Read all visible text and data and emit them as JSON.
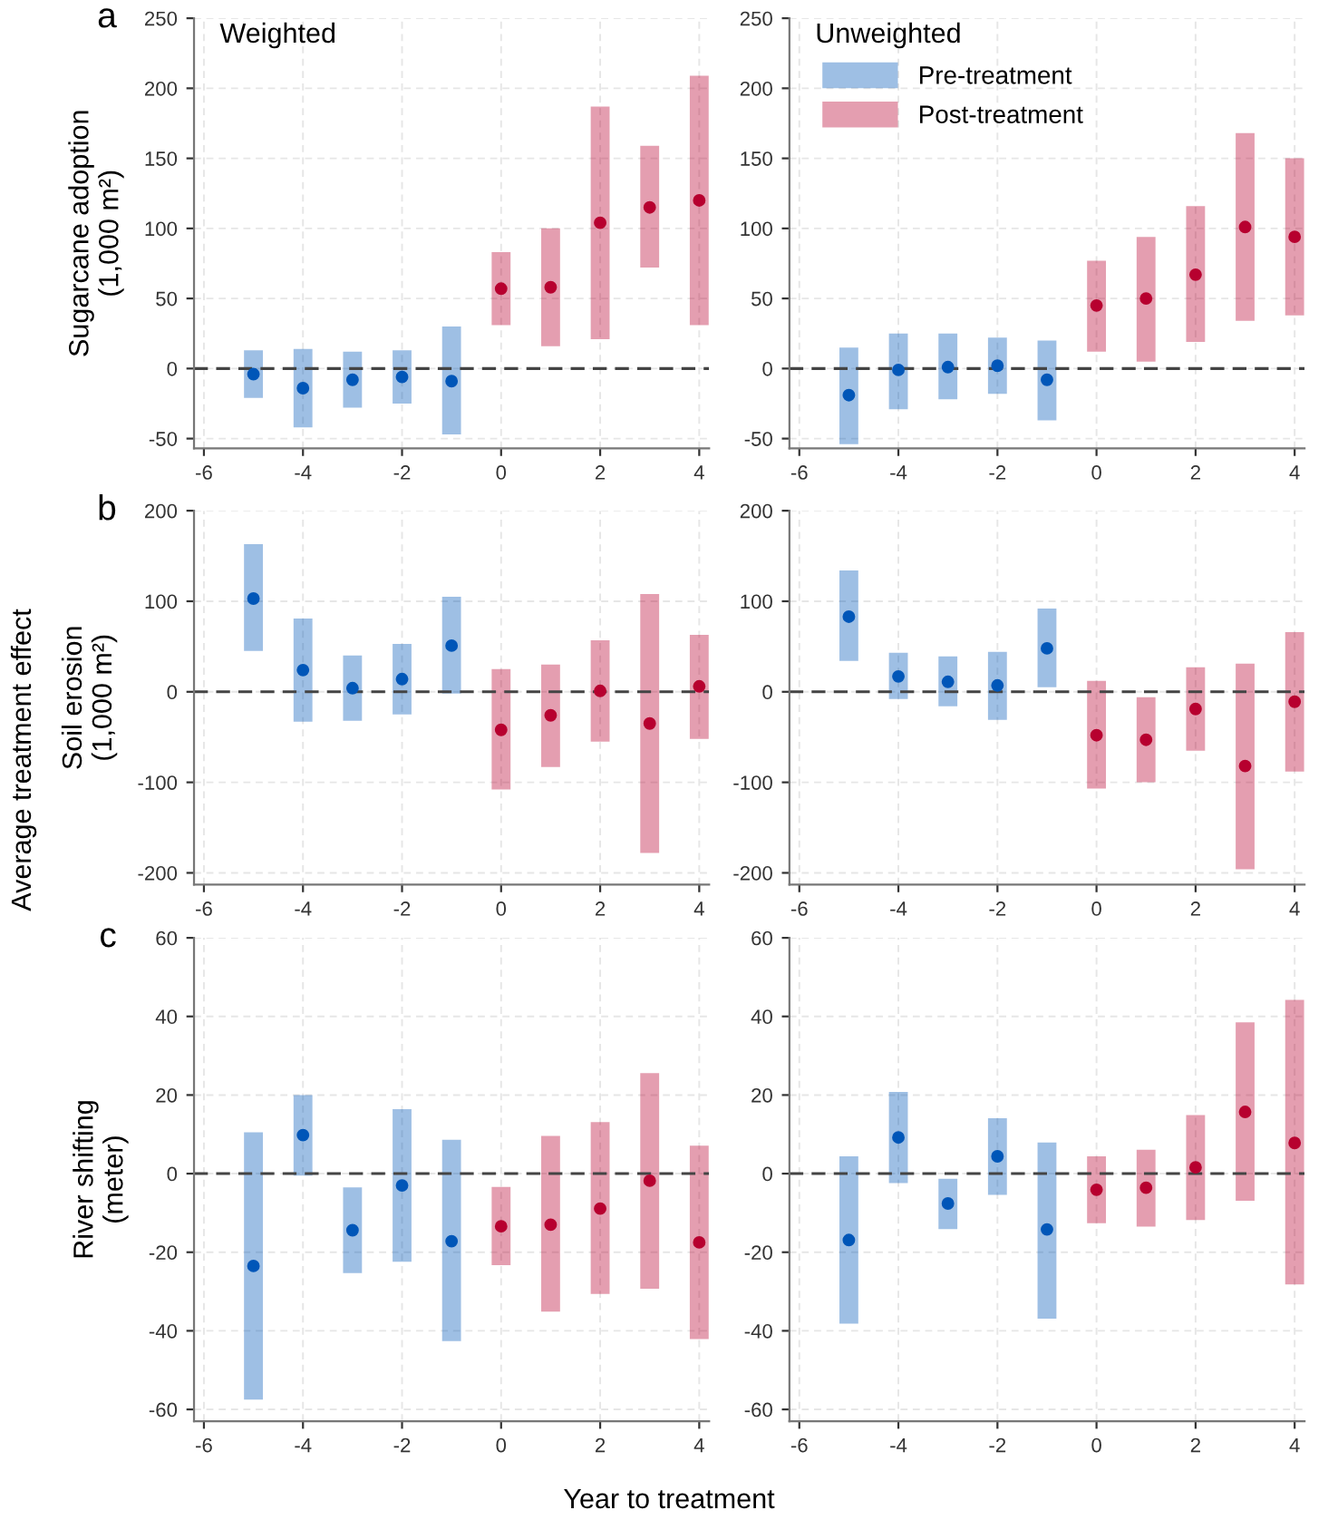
{
  "chart_data": [
    {
      "type": "scatter",
      "title": "Weighted",
      "ylabel": "Sugarcane adoption\n(1,000 m²)",
      "annotations": [
        "a",
        "Average treatment effect"
      ],
      "xlim": [
        -6.2,
        4.2
      ],
      "xticks": [
        -6,
        -4,
        -2,
        0,
        2,
        4
      ],
      "ylim": [
        -57,
        250
      ],
      "yticks": [
        -50,
        0,
        50,
        100,
        150,
        200,
        250
      ],
      "grid": true,
      "marker": "circle",
      "ref_lines": [
        {
          "axis": "y",
          "value": 0,
          "line_style": "dashed"
        }
      ],
      "series": [
        {
          "color": "#0056b8",
          "x": [
            -5,
            -4,
            -3,
            -2,
            -1
          ],
          "values": [
            -4,
            -14,
            -8,
            -6,
            -9
          ],
          "errors": [
            [
              -21,
              13
            ],
            [
              -42,
              14
            ],
            [
              -28,
              12
            ],
            [
              -25,
              13
            ],
            [
              -47,
              30
            ]
          ]
        },
        {
          "color": "#b7002f",
          "x": [
            0,
            1,
            2,
            3,
            4
          ],
          "values": [
            57,
            58,
            104,
            115,
            120
          ],
          "errors": [
            [
              31,
              83
            ],
            [
              16,
              100
            ],
            [
              21,
              187
            ],
            [
              72,
              159
            ],
            [
              31,
              209
            ]
          ]
        }
      ]
    },
    {
      "type": "scatter",
      "title": "Unweighted",
      "xlim": [
        -6.2,
        4.2
      ],
      "xticks": [
        -6,
        -4,
        -2,
        0,
        2,
        4
      ],
      "ylim": [
        -57,
        250
      ],
      "yticks": [
        -50,
        0,
        50,
        100,
        150,
        200,
        250
      ],
      "grid": true,
      "marker": "circle",
      "legend": "top left",
      "ref_lines": [
        {
          "axis": "y",
          "value": 0,
          "line_style": "dashed"
        }
      ],
      "series": [
        {
          "name": "Pre-treatment",
          "color": "#0056b8",
          "x": [
            -5,
            -4,
            -3,
            -2,
            -1
          ],
          "values": [
            -19,
            -1,
            1,
            2,
            -8
          ],
          "errors": [
            [
              -54,
              15
            ],
            [
              -29,
              25
            ],
            [
              -22,
              25
            ],
            [
              -18,
              22
            ],
            [
              -37,
              20
            ]
          ]
        },
        {
          "name": "Post-treatment",
          "color": "#b7002f",
          "x": [
            0,
            1,
            2,
            3,
            4
          ],
          "values": [
            45,
            50,
            67,
            101,
            94
          ],
          "errors": [
            [
              12,
              77
            ],
            [
              5,
              94
            ],
            [
              19,
              116
            ],
            [
              34,
              168
            ],
            [
              38,
              150
            ]
          ]
        }
      ]
    },
    {
      "type": "scatter",
      "ylabel": "Soil erosion\n(1,000 m²)",
      "annotations": [
        "b"
      ],
      "xlim": [
        -6.2,
        4.2
      ],
      "xticks": [
        -6,
        -4,
        -2,
        0,
        2,
        4
      ],
      "ylim": [
        -213,
        200
      ],
      "yticks": [
        -200,
        -100,
        0,
        100,
        200
      ],
      "grid": true,
      "marker": "circle",
      "ref_lines": [
        {
          "axis": "y",
          "value": 0,
          "line_style": "dashed"
        }
      ],
      "series": [
        {
          "color": "#0056b8",
          "x": [
            -5,
            -4,
            -3,
            -2,
            -1
          ],
          "values": [
            103,
            24,
            4,
            14,
            51
          ],
          "errors": [
            [
              45,
              163
            ],
            [
              -33,
              81
            ],
            [
              -32,
              40
            ],
            [
              -25,
              53
            ],
            [
              -2,
              105
            ]
          ]
        },
        {
          "color": "#b7002f",
          "x": [
            0,
            1,
            2,
            3,
            4
          ],
          "values": [
            -42,
            -26,
            1,
            -35,
            6
          ],
          "errors": [
            [
              -108,
              25
            ],
            [
              -83,
              30
            ],
            [
              -55,
              57
            ],
            [
              -178,
              108
            ],
            [
              -52,
              63
            ]
          ]
        }
      ]
    },
    {
      "type": "scatter",
      "xlim": [
        -6.2,
        4.2
      ],
      "xticks": [
        -6,
        -4,
        -2,
        0,
        2,
        4
      ],
      "ylim": [
        -213,
        200
      ],
      "yticks": [
        -200,
        -100,
        0,
        100,
        200
      ],
      "grid": true,
      "marker": "circle",
      "ref_lines": [
        {
          "axis": "y",
          "value": 0,
          "line_style": "dashed"
        }
      ],
      "series": [
        {
          "color": "#0056b8",
          "x": [
            -5,
            -4,
            -3,
            -2,
            -1
          ],
          "values": [
            83,
            17,
            11,
            7,
            48
          ],
          "errors": [
            [
              34,
              134
            ],
            [
              -8,
              43
            ],
            [
              -16,
              39
            ],
            [
              -31,
              44
            ],
            [
              5,
              92
            ]
          ]
        },
        {
          "color": "#b7002f",
          "x": [
            0,
            1,
            2,
            3,
            4
          ],
          "values": [
            -48,
            -53,
            -19,
            -82,
            -11
          ],
          "errors": [
            [
              -107,
              12
            ],
            [
              -100,
              -6
            ],
            [
              -65,
              27
            ],
            [
              -196,
              31
            ],
            [
              -88,
              66
            ]
          ]
        }
      ]
    },
    {
      "type": "scatter",
      "ylabel": "River shifting\n(meter)",
      "xlabel": "Year to treatment",
      "annotations": [
        "c"
      ],
      "xlim": [
        -6.2,
        4.2
      ],
      "xticks": [
        -6,
        -4,
        -2,
        0,
        2,
        4
      ],
      "ylim": [
        -63,
        60
      ],
      "yticks": [
        -60,
        -40,
        -20,
        0,
        20,
        40,
        60
      ],
      "grid": true,
      "marker": "circle",
      "ref_lines": [
        {
          "axis": "y",
          "value": 0,
          "line_style": "dashed"
        }
      ],
      "series": [
        {
          "color": "#0056b8",
          "x": [
            -5,
            -4,
            -3,
            -2,
            -1
          ],
          "values": [
            -23.5,
            9.8,
            -14.4,
            -3,
            -17.2
          ],
          "errors": [
            [
              -57.5,
              10.5
            ],
            [
              -0.5,
              20
            ],
            [
              -25.3,
              -3.5
            ],
            [
              -22.4,
              16.4
            ],
            [
              -42.6,
              8.6
            ]
          ]
        },
        {
          "color": "#b7002f",
          "x": [
            0,
            1,
            2,
            3,
            4
          ],
          "values": [
            -13.4,
            -13,
            -8.9,
            -1.8,
            -17.5
          ],
          "errors": [
            [
              -23.3,
              -3.4
            ],
            [
              -35.1,
              9.6
            ],
            [
              -30.6,
              13.1
            ],
            [
              -29.3,
              25.6
            ],
            [
              -42.1,
              7.1
            ]
          ]
        }
      ]
    },
    {
      "type": "scatter",
      "xlim": [
        -6.2,
        4.2
      ],
      "xticks": [
        -6,
        -4,
        -2,
        0,
        2,
        4
      ],
      "ylim": [
        -63,
        60
      ],
      "yticks": [
        -60,
        -40,
        -20,
        0,
        20,
        40,
        60
      ],
      "grid": true,
      "marker": "circle",
      "ref_lines": [
        {
          "axis": "y",
          "value": 0,
          "line_style": "dashed"
        }
      ],
      "series": [
        {
          "color": "#0056b8",
          "x": [
            -5,
            -4,
            -3,
            -2,
            -1
          ],
          "values": [
            -16.9,
            9.2,
            -7.6,
            4.4,
            -14.2
          ],
          "errors": [
            [
              -38.2,
              4.4
            ],
            [
              -2.4,
              20.8
            ],
            [
              -14.1,
              -1.3
            ],
            [
              -5.4,
              14.1
            ],
            [
              -36.9,
              7.9
            ]
          ]
        },
        {
          "color": "#b7002f",
          "x": [
            0,
            1,
            2,
            3,
            4
          ],
          "values": [
            -4.1,
            -3.6,
            1.6,
            15.7,
            7.8
          ],
          "errors": [
            [
              -12.6,
              4.4
            ],
            [
              -13.5,
              6.1
            ],
            [
              -11.8,
              14.9
            ],
            [
              -6.9,
              38.5
            ],
            [
              -28.2,
              44.2
            ]
          ]
        }
      ]
    }
  ]
}
